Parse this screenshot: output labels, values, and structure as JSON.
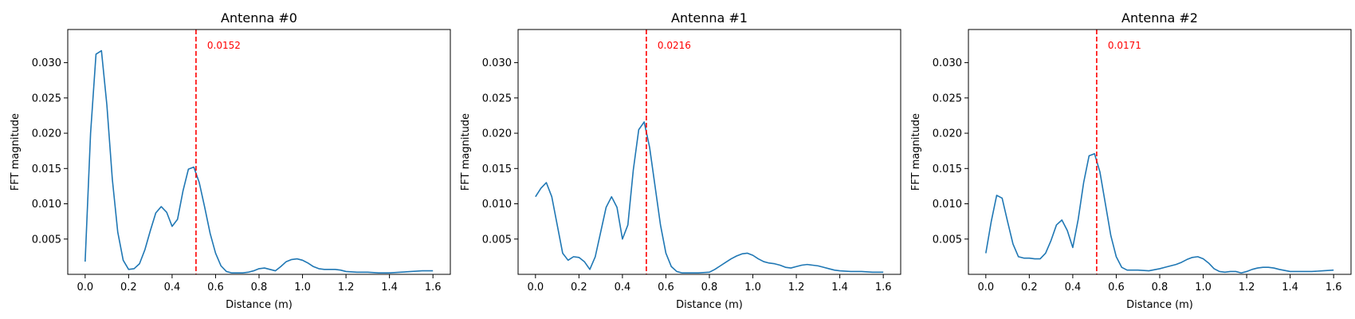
{
  "chart_data": [
    {
      "type": "line",
      "title": "Antenna #0",
      "xlabel": "Distance (m)",
      "ylabel": "FFT magnitude",
      "xlim": [
        -0.08,
        1.68
      ],
      "ylim": [
        0,
        0.0347
      ],
      "xticks": [
        0.0,
        0.2,
        0.4,
        0.6,
        0.8,
        1.0,
        1.2,
        1.4,
        1.6
      ],
      "xtick_labels": [
        "0.0",
        "0.2",
        "0.4",
        "0.6",
        "0.8",
        "1.0",
        "1.2",
        "1.4",
        "1.6"
      ],
      "yticks": [
        0.005,
        0.01,
        0.015,
        0.02,
        0.025,
        0.03
      ],
      "ytick_labels": [
        "0.005",
        "0.010",
        "0.015",
        "0.020",
        "0.025",
        "0.030"
      ],
      "grid": false,
      "line_color": "#1f77b4",
      "marker_color": "#ff0000",
      "marker_x": 0.51,
      "annotation": "0.0152",
      "annotation_value": 0.0152,
      "series": [
        {
          "x": [
            0.0,
            0.025,
            0.05,
            0.075,
            0.1,
            0.125,
            0.15,
            0.175,
            0.2,
            0.225,
            0.25,
            0.275,
            0.3,
            0.325,
            0.35,
            0.375,
            0.4,
            0.425,
            0.45,
            0.475,
            0.5,
            0.525,
            0.55,
            0.575,
            0.6,
            0.625,
            0.65,
            0.675,
            0.7,
            0.725,
            0.75,
            0.775,
            0.8,
            0.825,
            0.85,
            0.875,
            0.9,
            0.925,
            0.95,
            0.975,
            1.0,
            1.025,
            1.05,
            1.075,
            1.1,
            1.125,
            1.15,
            1.175,
            1.2,
            1.25,
            1.3,
            1.35,
            1.4,
            1.45,
            1.5,
            1.55,
            1.6
          ],
          "y": [
            0.0018,
            0.02,
            0.0312,
            0.0317,
            0.024,
            0.0135,
            0.006,
            0.002,
            0.0007,
            0.0008,
            0.0015,
            0.0035,
            0.0062,
            0.0087,
            0.0096,
            0.0088,
            0.0068,
            0.0078,
            0.0118,
            0.0149,
            0.0152,
            0.013,
            0.0095,
            0.0058,
            0.003,
            0.0012,
            0.0004,
            0.0002,
            0.0002,
            0.0002,
            0.0003,
            0.0005,
            0.0008,
            0.0009,
            0.0007,
            0.0005,
            0.0011,
            0.0018,
            0.0021,
            0.0022,
            0.002,
            0.0016,
            0.0011,
            0.0008,
            0.0007,
            0.0007,
            0.0007,
            0.0006,
            0.0004,
            0.0003,
            0.0003,
            0.0002,
            0.0002,
            0.0003,
            0.0004,
            0.0005,
            0.0005
          ]
        }
      ]
    },
    {
      "type": "line",
      "title": "Antenna #1",
      "xlabel": "Distance (m)",
      "ylabel": "FFT magnitude",
      "xlim": [
        -0.08,
        1.68
      ],
      "ylim": [
        0,
        0.0347
      ],
      "xticks": [
        0.0,
        0.2,
        0.4,
        0.6,
        0.8,
        1.0,
        1.2,
        1.4,
        1.6
      ],
      "xtick_labels": [
        "0.0",
        "0.2",
        "0.4",
        "0.6",
        "0.8",
        "1.0",
        "1.2",
        "1.4",
        "1.6"
      ],
      "yticks": [
        0.005,
        0.01,
        0.015,
        0.02,
        0.025,
        0.03
      ],
      "ytick_labels": [
        "0.005",
        "0.010",
        "0.015",
        "0.020",
        "0.025",
        "0.030"
      ],
      "grid": false,
      "line_color": "#1f77b4",
      "marker_color": "#ff0000",
      "marker_x": 0.51,
      "annotation": "0.0216",
      "annotation_value": 0.0216,
      "series": [
        {
          "x": [
            0.0,
            0.025,
            0.05,
            0.075,
            0.1,
            0.125,
            0.15,
            0.175,
            0.2,
            0.225,
            0.25,
            0.275,
            0.3,
            0.325,
            0.35,
            0.375,
            0.4,
            0.425,
            0.45,
            0.475,
            0.5,
            0.525,
            0.55,
            0.575,
            0.6,
            0.625,
            0.65,
            0.675,
            0.7,
            0.75,
            0.8,
            0.825,
            0.85,
            0.875,
            0.9,
            0.925,
            0.95,
            0.975,
            1.0,
            1.025,
            1.05,
            1.075,
            1.1,
            1.125,
            1.15,
            1.175,
            1.2,
            1.225,
            1.25,
            1.275,
            1.3,
            1.325,
            1.35,
            1.375,
            1.4,
            1.45,
            1.5,
            1.55,
            1.6
          ],
          "y": [
            0.011,
            0.0122,
            0.013,
            0.011,
            0.007,
            0.003,
            0.002,
            0.0025,
            0.0024,
            0.0018,
            0.0007,
            0.0025,
            0.006,
            0.0095,
            0.011,
            0.0095,
            0.005,
            0.007,
            0.0148,
            0.0205,
            0.0216,
            0.018,
            0.0125,
            0.007,
            0.003,
            0.0011,
            0.0004,
            0.0002,
            0.0002,
            0.0002,
            0.0003,
            0.0007,
            0.0012,
            0.0017,
            0.0022,
            0.0026,
            0.0029,
            0.003,
            0.0027,
            0.0022,
            0.0018,
            0.0016,
            0.0015,
            0.0013,
            0.001,
            0.0009,
            0.0011,
            0.0013,
            0.0014,
            0.0013,
            0.0012,
            0.001,
            0.0008,
            0.0006,
            0.0005,
            0.0004,
            0.0004,
            0.0003,
            0.0003
          ]
        }
      ]
    },
    {
      "type": "line",
      "title": "Antenna #2",
      "xlabel": "Distance (m)",
      "ylabel": "FFT magnitude",
      "xlim": [
        -0.08,
        1.68
      ],
      "ylim": [
        0,
        0.0347
      ],
      "xticks": [
        0.0,
        0.2,
        0.4,
        0.6,
        0.8,
        1.0,
        1.2,
        1.4,
        1.6
      ],
      "xtick_labels": [
        "0.0",
        "0.2",
        "0.4",
        "0.6",
        "0.8",
        "1.0",
        "1.2",
        "1.4",
        "1.6"
      ],
      "yticks": [
        0.005,
        0.01,
        0.015,
        0.02,
        0.025,
        0.03
      ],
      "ytick_labels": [
        "0.005",
        "0.010",
        "0.015",
        "0.020",
        "0.025",
        "0.030"
      ],
      "grid": false,
      "line_color": "#1f77b4",
      "marker_color": "#ff0000",
      "marker_x": 0.51,
      "annotation": "0.0171",
      "annotation_value": 0.0171,
      "series": [
        {
          "x": [
            0.0,
            0.025,
            0.05,
            0.075,
            0.1,
            0.125,
            0.15,
            0.175,
            0.2,
            0.225,
            0.25,
            0.275,
            0.3,
            0.325,
            0.35,
            0.375,
            0.4,
            0.425,
            0.45,
            0.475,
            0.5,
            0.525,
            0.55,
            0.575,
            0.6,
            0.625,
            0.65,
            0.7,
            0.75,
            0.8,
            0.825,
            0.85,
            0.875,
            0.9,
            0.925,
            0.95,
            0.975,
            1.0,
            1.025,
            1.05,
            1.075,
            1.1,
            1.125,
            1.15,
            1.175,
            1.2,
            1.225,
            1.25,
            1.275,
            1.3,
            1.325,
            1.35,
            1.4,
            1.45,
            1.5,
            1.55,
            1.6
          ],
          "y": [
            0.003,
            0.0075,
            0.0112,
            0.0108,
            0.0075,
            0.0043,
            0.0025,
            0.0023,
            0.0023,
            0.0022,
            0.0022,
            0.003,
            0.0048,
            0.007,
            0.0077,
            0.0062,
            0.0038,
            0.0078,
            0.013,
            0.0168,
            0.0171,
            0.0145,
            0.01,
            0.0055,
            0.0025,
            0.001,
            0.0006,
            0.0006,
            0.0005,
            0.0008,
            0.001,
            0.0012,
            0.0014,
            0.0017,
            0.0021,
            0.0024,
            0.0025,
            0.0022,
            0.0016,
            0.0008,
            0.0004,
            0.0003,
            0.0004,
            0.0004,
            0.0002,
            0.0004,
            0.0007,
            0.0009,
            0.001,
            0.001,
            0.0009,
            0.0007,
            0.0004,
            0.0004,
            0.0004,
            0.0005,
            0.0006
          ]
        }
      ]
    }
  ]
}
